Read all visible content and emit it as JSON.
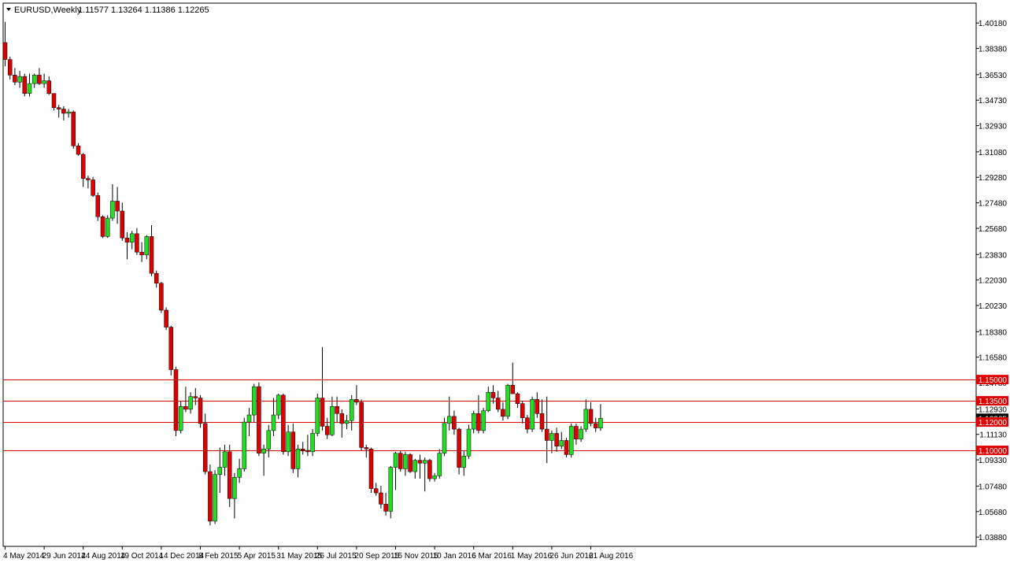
{
  "header": {
    "symbol_label": "EURUSD,Weekly",
    "ohlc_label": "1.11577 1.13264 1.11386 1.12265"
  },
  "colors": {
    "bull": "#22dd22",
    "bear": "#dd0000",
    "frame": "#000000",
    "hline": "#e00000",
    "hline_label_bg": "#e00000",
    "hline_label_text": "#ffffff",
    "current_price_bg": "#000000",
    "background": "#ffffff"
  },
  "chart_data": {
    "type": "candlestick",
    "symbol": "EURUSD",
    "timeframe": "Weekly",
    "ylim": [
      1.0322,
      1.4158
    ],
    "y_ticks": [
      "1.40180",
      "1.38380",
      "1.36530",
      "1.34730",
      "1.32930",
      "1.31080",
      "1.29280",
      "1.27480",
      "1.25680",
      "1.23830",
      "1.22030",
      "1.20230",
      "1.18380",
      "1.16580",
      "1.14780",
      "1.12930",
      "1.11130",
      "1.09330",
      "1.07480",
      "1.05680",
      "1.03880"
    ],
    "x_ticks": [
      "4 May 2014",
      "29 Jun 2014",
      "24 Aug 2014",
      "19 Oct 2014",
      "14 Dec 2014",
      "8 Feb 2015",
      "5 Apr 2015",
      "31 May 2015",
      "26 Jul 2015",
      "20 Sep 2015",
      "15 Nov 2015",
      "10 Jan 2016",
      "6 Mar 2016",
      "1 May 2016",
      "26 Jun 2016",
      "21 Aug 2016"
    ],
    "horizontal_lines": [
      {
        "price": 1.15,
        "label": "1.15000"
      },
      {
        "price": 1.135,
        "label": "1.13500"
      },
      {
        "price": 1.12,
        "label": "1.12000"
      },
      {
        "price": 1.1,
        "label": "1.10000"
      }
    ],
    "current_price": {
      "price": 1.12265,
      "label": "1.12265"
    },
    "candles": [
      [
        1.388,
        1.4026,
        1.3712,
        1.376
      ],
      [
        1.376,
        1.378,
        1.362,
        1.365
      ],
      [
        1.365,
        1.37,
        1.358,
        1.36
      ],
      [
        1.36,
        1.368,
        1.356,
        1.364
      ],
      [
        1.364,
        1.366,
        1.35,
        1.352
      ],
      [
        1.352,
        1.366,
        1.35,
        1.359
      ],
      [
        1.359,
        1.366,
        1.356,
        1.365
      ],
      [
        1.365,
        1.37,
        1.358,
        1.359
      ],
      [
        1.359,
        1.366,
        1.356,
        1.361
      ],
      [
        1.361,
        1.364,
        1.351,
        1.352
      ],
      [
        1.352,
        1.352,
        1.34,
        1.342
      ],
      [
        1.342,
        1.344,
        1.335,
        1.341
      ],
      [
        1.341,
        1.343,
        1.333,
        1.338
      ],
      [
        1.338,
        1.341,
        1.335,
        1.339
      ],
      [
        1.339,
        1.34,
        1.313,
        1.315
      ],
      [
        1.315,
        1.317,
        1.308,
        1.309
      ],
      [
        1.309,
        1.31,
        1.286,
        1.292
      ],
      [
        1.292,
        1.294,
        1.285,
        1.291
      ],
      [
        1.291,
        1.293,
        1.279,
        1.28
      ],
      [
        1.28,
        1.282,
        1.262,
        1.265
      ],
      [
        1.265,
        1.266,
        1.25,
        1.251
      ],
      [
        1.251,
        1.266,
        1.25,
        1.264
      ],
      [
        1.264,
        1.288,
        1.262,
        1.276
      ],
      [
        1.276,
        1.286,
        1.26,
        1.269
      ],
      [
        1.269,
        1.275,
        1.248,
        1.25
      ],
      [
        1.25,
        1.254,
        1.235,
        1.247
      ],
      [
        1.247,
        1.255,
        1.242,
        1.253
      ],
      [
        1.253,
        1.257,
        1.238,
        1.24
      ],
      [
        1.24,
        1.247,
        1.233,
        1.238
      ],
      [
        1.238,
        1.252,
        1.235,
        1.251
      ],
      [
        1.251,
        1.259,
        1.223,
        1.225
      ],
      [
        1.225,
        1.227,
        1.215,
        1.218
      ],
      [
        1.218,
        1.219,
        1.197,
        1.199
      ],
      [
        1.199,
        1.201,
        1.185,
        1.187
      ],
      [
        1.187,
        1.188,
        1.153,
        1.157
      ],
      [
        1.157,
        1.159,
        1.11,
        1.114
      ],
      [
        1.114,
        1.135,
        1.112,
        1.131
      ],
      [
        1.131,
        1.145,
        1.127,
        1.129
      ],
      [
        1.129,
        1.141,
        1.126,
        1.138
      ],
      [
        1.138,
        1.144,
        1.132,
        1.137
      ],
      [
        1.137,
        1.139,
        1.116,
        1.119
      ],
      [
        1.119,
        1.126,
        1.083,
        1.085
      ],
      [
        1.085,
        1.09,
        1.047,
        1.05
      ],
      [
        1.05,
        1.086,
        1.048,
        1.083
      ],
      [
        1.083,
        1.102,
        1.07,
        1.088
      ],
      [
        1.088,
        1.104,
        1.082,
        1.099
      ],
      [
        1.099,
        1.104,
        1.06,
        1.066
      ],
      [
        1.066,
        1.084,
        1.052,
        1.081
      ],
      [
        1.081,
        1.094,
        1.077,
        1.087
      ],
      [
        1.087,
        1.123,
        1.085,
        1.12
      ],
      [
        1.12,
        1.13,
        1.11,
        1.125
      ],
      [
        1.125,
        1.147,
        1.12,
        1.145
      ],
      [
        1.145,
        1.148,
        1.096,
        1.098
      ],
      [
        1.098,
        1.104,
        1.082,
        1.101
      ],
      [
        1.101,
        1.118,
        1.095,
        1.114
      ],
      [
        1.114,
        1.137,
        1.11,
        1.125
      ],
      [
        1.125,
        1.14,
        1.122,
        1.139
      ],
      [
        1.139,
        1.14,
        1.097,
        1.099
      ],
      [
        1.099,
        1.118,
        1.096,
        1.113
      ],
      [
        1.113,
        1.119,
        1.084,
        1.087
      ],
      [
        1.087,
        1.104,
        1.081,
        1.101
      ],
      [
        1.101,
        1.106,
        1.097,
        1.1
      ],
      [
        1.1,
        1.111,
        1.096,
        1.099
      ],
      [
        1.099,
        1.115,
        1.096,
        1.112
      ],
      [
        1.112,
        1.14,
        1.11,
        1.137
      ],
      [
        1.137,
        1.173,
        1.114,
        1.117
      ],
      [
        1.117,
        1.123,
        1.108,
        1.111
      ],
      [
        1.111,
        1.138,
        1.11,
        1.131
      ],
      [
        1.131,
        1.138,
        1.12,
        1.126
      ],
      [
        1.126,
        1.129,
        1.109,
        1.119
      ],
      [
        1.119,
        1.125,
        1.115,
        1.121
      ],
      [
        1.121,
        1.139,
        1.114,
        1.136
      ],
      [
        1.136,
        1.146,
        1.132,
        1.134
      ],
      [
        1.134,
        1.136,
        1.1,
        1.102
      ],
      [
        1.102,
        1.104,
        1.095,
        1.101
      ],
      [
        1.101,
        1.102,
        1.07,
        1.073
      ],
      [
        1.073,
        1.077,
        1.068,
        1.07
      ],
      [
        1.07,
        1.075,
        1.059,
        1.062
      ],
      [
        1.062,
        1.07,
        1.054,
        1.057
      ],
      [
        1.057,
        1.089,
        1.052,
        1.088
      ],
      [
        1.088,
        1.099,
        1.072,
        1.098
      ],
      [
        1.098,
        1.1,
        1.085,
        1.087
      ],
      [
        1.087,
        1.099,
        1.082,
        1.097
      ],
      [
        1.097,
        1.098,
        1.084,
        1.085
      ],
      [
        1.085,
        1.094,
        1.08,
        1.093
      ],
      [
        1.093,
        1.097,
        1.08,
        1.091
      ],
      [
        1.091,
        1.095,
        1.071,
        1.093
      ],
      [
        1.093,
        1.094,
        1.078,
        1.08
      ],
      [
        1.08,
        1.084,
        1.078,
        1.082
      ],
      [
        1.082,
        1.101,
        1.08,
        1.098
      ],
      [
        1.098,
        1.123,
        1.096,
        1.119
      ],
      [
        1.119,
        1.138,
        1.114,
        1.124
      ],
      [
        1.124,
        1.128,
        1.111,
        1.115
      ],
      [
        1.115,
        1.116,
        1.083,
        1.088
      ],
      [
        1.088,
        1.1,
        1.082,
        1.096
      ],
      [
        1.096,
        1.118,
        1.094,
        1.115
      ],
      [
        1.115,
        1.128,
        1.112,
        1.126
      ],
      [
        1.126,
        1.139,
        1.112,
        1.114
      ],
      [
        1.114,
        1.13,
        1.112,
        1.128
      ],
      [
        1.128,
        1.145,
        1.127,
        1.141
      ],
      [
        1.141,
        1.146,
        1.133,
        1.137
      ],
      [
        1.137,
        1.142,
        1.127,
        1.129
      ],
      [
        1.129,
        1.134,
        1.121,
        1.124
      ],
      [
        1.124,
        1.147,
        1.122,
        1.146
      ],
      [
        1.146,
        1.162,
        1.14,
        1.14
      ],
      [
        1.14,
        1.141,
        1.13,
        1.133
      ],
      [
        1.133,
        1.135,
        1.119,
        1.123
      ],
      [
        1.123,
        1.125,
        1.112,
        1.115
      ],
      [
        1.115,
        1.138,
        1.113,
        1.136
      ],
      [
        1.136,
        1.141,
        1.123,
        1.126
      ],
      [
        1.126,
        1.136,
        1.113,
        1.115
      ],
      [
        1.115,
        1.138,
        1.091,
        1.107
      ],
      [
        1.107,
        1.114,
        1.098,
        1.112
      ],
      [
        1.112,
        1.116,
        1.099,
        1.103
      ],
      [
        1.103,
        1.113,
        1.101,
        1.107
      ],
      [
        1.107,
        1.109,
        1.095,
        1.097
      ],
      [
        1.097,
        1.119,
        1.095,
        1.117
      ],
      [
        1.117,
        1.119,
        1.104,
        1.108
      ],
      [
        1.108,
        1.117,
        1.106,
        1.115
      ],
      [
        1.115,
        1.136,
        1.113,
        1.129
      ],
      [
        1.129,
        1.134,
        1.117,
        1.119
      ],
      [
        1.119,
        1.123,
        1.113,
        1.1158
      ],
      [
        1.11577,
        1.13264,
        1.11386,
        1.12265
      ]
    ]
  }
}
